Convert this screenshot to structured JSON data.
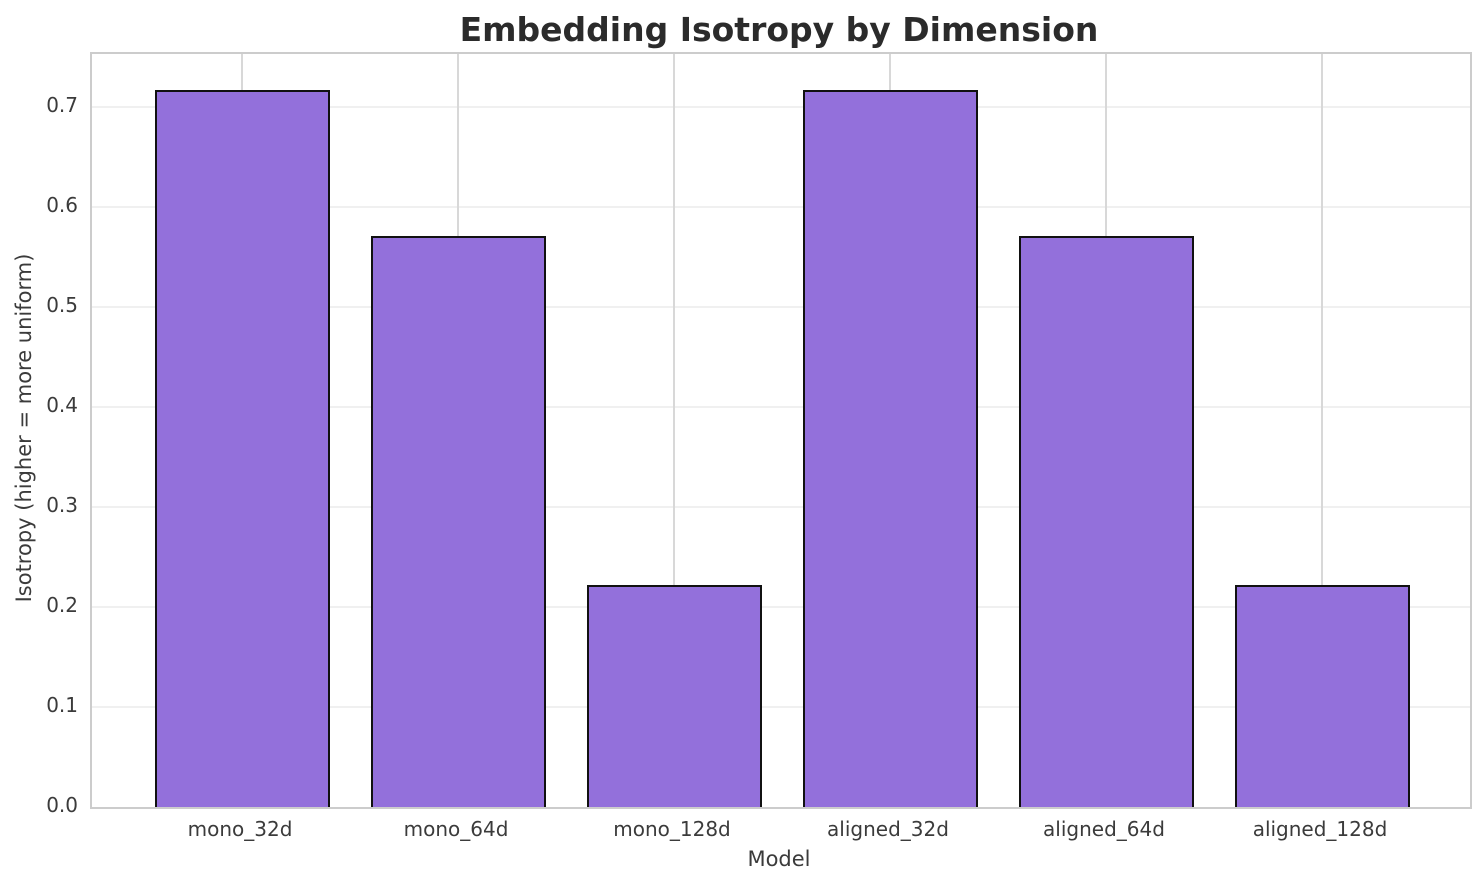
{
  "title": "Embedding Isotropy by Dimension",
  "chart_data": {
    "type": "bar",
    "title": "Embedding Isotropy by Dimension",
    "xlabel": "Model",
    "ylabel": "Isotropy (higher = more uniform)",
    "categories": [
      "mono_32d",
      "mono_64d",
      "mono_128d",
      "aligned_32d",
      "aligned_64d",
      "aligned_128d"
    ],
    "values": [
      0.717,
      0.571,
      0.222,
      0.717,
      0.571,
      0.222
    ],
    "ylim": [
      0,
      0.753
    ],
    "yticks": [
      0.0,
      0.1,
      0.2,
      0.3,
      0.4,
      0.5,
      0.6,
      0.7
    ],
    "ytick_labels": [
      "0.0",
      "0.1",
      "0.2",
      "0.3",
      "0.4",
      "0.5",
      "0.6",
      "0.7"
    ],
    "grid": true,
    "grid_x": true,
    "grid_y": true,
    "legend": null,
    "bar_color": "#9370DB",
    "bar_edge_color": "#111111",
    "background_color": "#ffffff"
  }
}
